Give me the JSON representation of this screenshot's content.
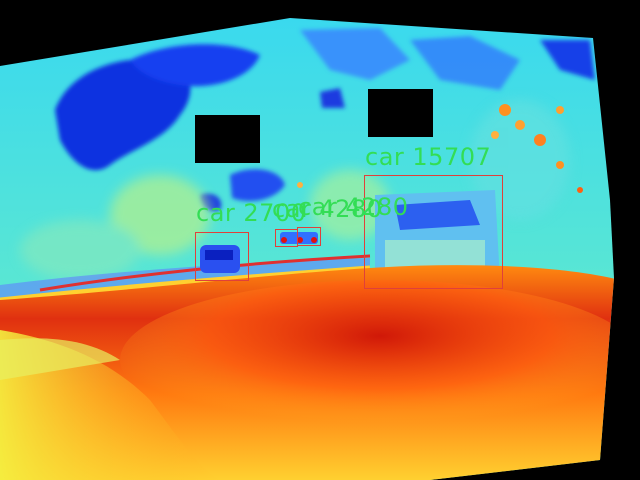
{
  "image": {
    "kind": "thermal-false-color",
    "palette": [
      "#0000b4",
      "#0040ff",
      "#1ab8ff",
      "#38e0e6",
      "#8cf09a",
      "#f0f060",
      "#ffc020",
      "#ff7010",
      "#e02010",
      "#b40000"
    ],
    "label_color": "#33dd55",
    "box_color": "#e0403a"
  },
  "detections": [
    {
      "label": "car 15707",
      "class": "car"
    },
    {
      "label": "car 2700",
      "class": "car"
    },
    {
      "label": "car 4280",
      "class": "car"
    },
    {
      "label": "car 4280",
      "class": "car"
    }
  ]
}
